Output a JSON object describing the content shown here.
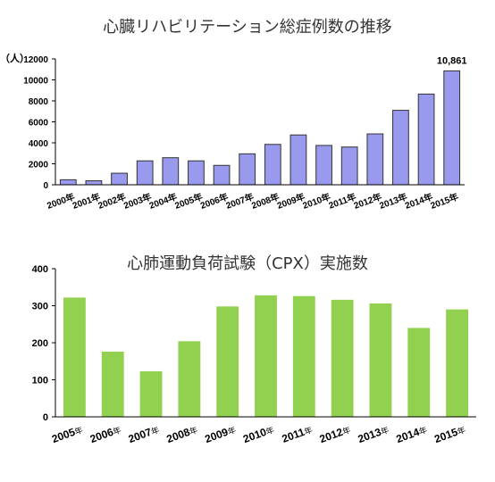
{
  "chart_data": [
    {
      "type": "bar",
      "title": "心臓リハビリテーション総症例数の推移",
      "ylabel": "（人）",
      "categories": [
        "2000年",
        "2001年",
        "2002年",
        "2003年",
        "2004年",
        "2005年",
        "2006年",
        "2007年",
        "2008年",
        "2009年",
        "2010年",
        "2011年",
        "2012年",
        "2013年",
        "2014年",
        "2015年"
      ],
      "values": [
        480,
        380,
        1100,
        2280,
        2580,
        2280,
        1850,
        2950,
        3850,
        4750,
        3750,
        3600,
        4850,
        7100,
        8650,
        10861
      ],
      "yticks": [
        "0",
        "2000",
        "4000",
        "6000",
        "8000",
        "10000",
        "12000"
      ],
      "ylim": [
        0,
        12000
      ],
      "annotation": "10,861",
      "color": "#9999ee"
    },
    {
      "type": "bar",
      "title": "心肺運動負荷試験（CPX）実施数",
      "categories": [
        "2005年",
        "2006年",
        "2007年",
        "2008年",
        "2009年",
        "2010年",
        "2011年",
        "2012年",
        "2013年",
        "2014年",
        "2015年"
      ],
      "values": [
        322,
        176,
        123,
        204,
        298,
        328,
        326,
        316,
        306,
        240,
        290
      ],
      "yticks": [
        "0",
        "100",
        "200",
        "300",
        "400"
      ],
      "ylim": [
        0,
        400
      ],
      "color": "#92d050"
    }
  ]
}
